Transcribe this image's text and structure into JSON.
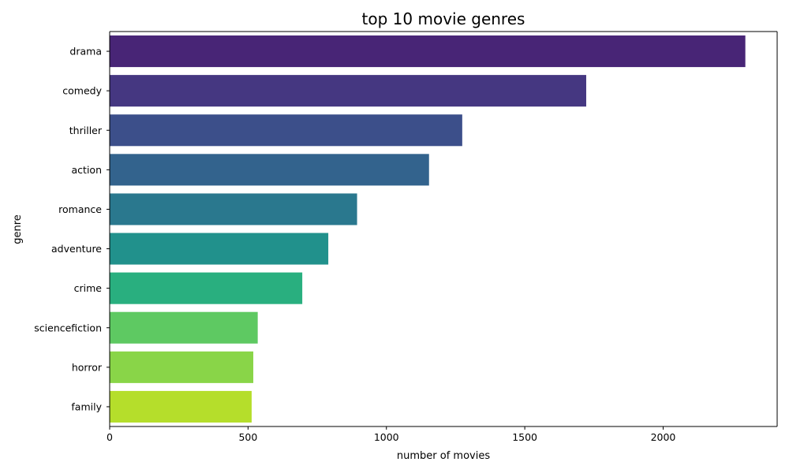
{
  "chart_data": {
    "type": "bar",
    "orientation": "horizontal",
    "title": "top 10 movie genres",
    "xlabel": "number of movies",
    "ylabel": "genre",
    "categories": [
      "drama",
      "comedy",
      "thriller",
      "action",
      "romance",
      "adventure",
      "crime",
      "sciencefiction",
      "horror",
      "family"
    ],
    "values": [
      2297,
      1722,
      1274,
      1154,
      894,
      790,
      696,
      535,
      519,
      513
    ],
    "colors": [
      "#482576",
      "#453781",
      "#3c4f8a",
      "#33638d",
      "#2a788e",
      "#21918c",
      "#29af7f",
      "#5ec962",
      "#89d548",
      "#b5de2b"
    ],
    "xlim": [
      0,
      2412
    ],
    "xticks": [
      0,
      500,
      1000,
      1500,
      2000
    ],
    "xtick_labels": [
      "0",
      "500",
      "1000",
      "1500",
      "2000"
    ],
    "grid": false,
    "legend": "none"
  }
}
